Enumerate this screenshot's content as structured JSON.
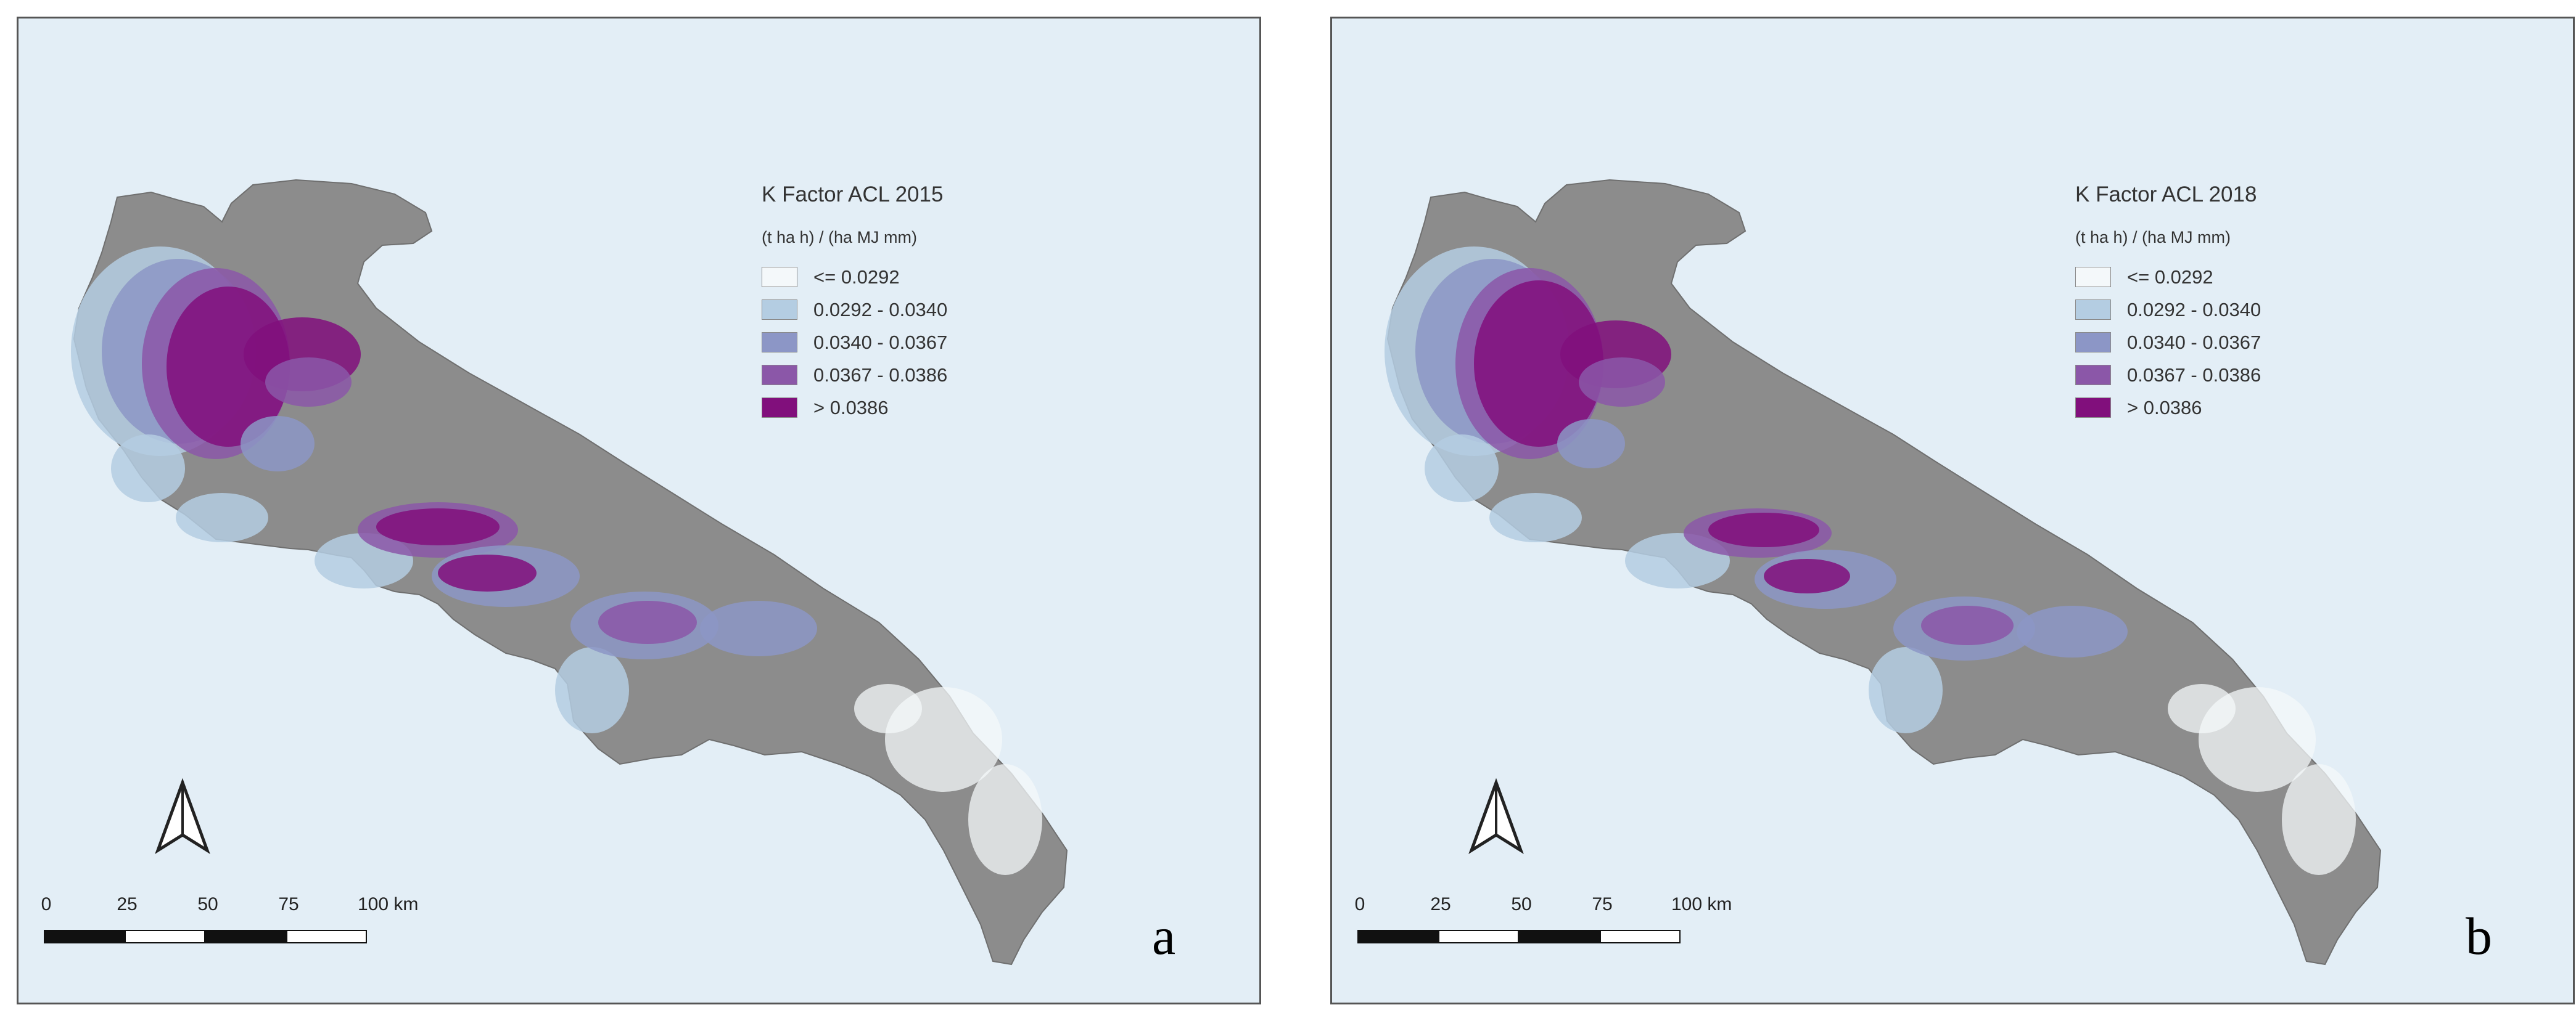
{
  "colors": {
    "water": "#e3eef6",
    "land_relief": "#8c8c8c",
    "class_1": "#f4f8fa",
    "class_2": "#b4cde2",
    "class_3": "#8c96c6",
    "class_4": "#8b57a8",
    "class_5": "#810f7c"
  },
  "legend_units": "(t ha h) / (ha MJ mm)",
  "legend_classes": [
    {
      "label": "<= 0.0292",
      "color": "#f4f8fa"
    },
    {
      "label": "0.0292 - 0.0340",
      "color": "#b4cde2"
    },
    {
      "label": "0.0340 - 0.0367",
      "color": "#8c96c6"
    },
    {
      "label": "0.0367 - 0.0386",
      "color": "#8b57a8"
    },
    {
      "label": "> 0.0386",
      "color": "#810f7c"
    }
  ],
  "scale_bar": {
    "ticks": [
      "0",
      "25",
      "50",
      "75",
      "100 km"
    ]
  },
  "panels": [
    {
      "id": "a",
      "legend_title": "K Factor ACL 2015",
      "letter": "a"
    },
    {
      "id": "b",
      "legend_title": "K Factor ACL 2018",
      "letter": "b"
    }
  ]
}
